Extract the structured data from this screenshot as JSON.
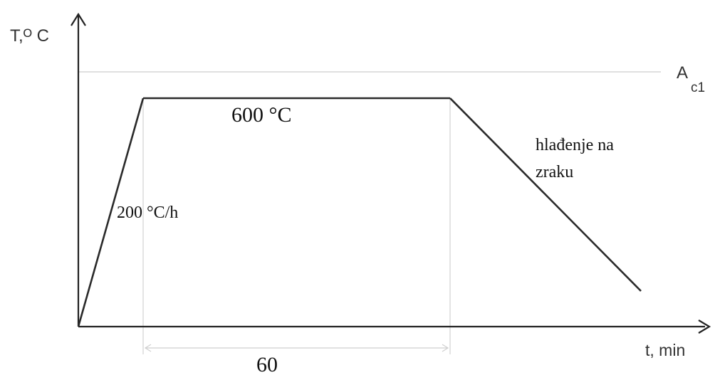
{
  "y_axis_label": "T,ᴼ C",
  "x_axis_label": "t, min",
  "reference_line": {
    "label_main": "A",
    "label_sub": "c1"
  },
  "heating_rate_label": "200 °C/h",
  "hold_temperature_label": "600 °C",
  "cooling_label_line1": "hlađenje na",
  "cooling_label_line2": "zraku",
  "hold_duration_label": "60",
  "colors": {
    "curve": "#2a2a2a",
    "axes": "#222222",
    "guides": "#cfcfcf"
  }
}
